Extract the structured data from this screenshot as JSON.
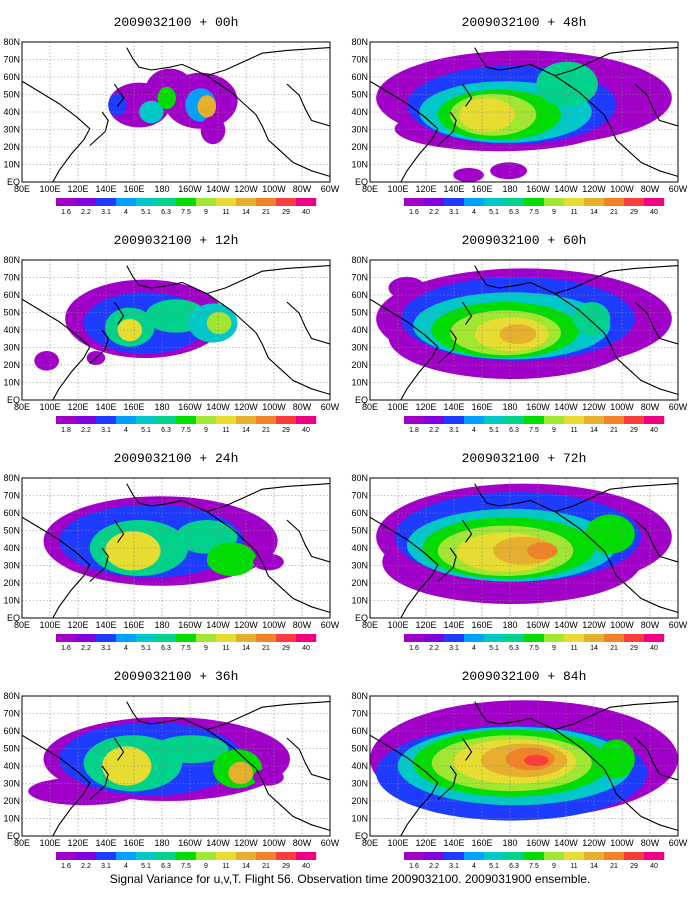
{
  "footer": "Signal Variance for u,v,T. Flight 56. Observation time 2009032100. 2009031900 ensemble.",
  "x_ticks": [
    "80E",
    "100E",
    "120E",
    "140E",
    "160E",
    "180",
    "160W",
    "140W",
    "120W",
    "100W",
    "80W",
    "60W"
  ],
  "y_ticks": [
    "EQ",
    "10N",
    "20N",
    "30N",
    "40N",
    "50N",
    "60N",
    "70N",
    "80N"
  ],
  "colorbar": {
    "labels": [
      "1.8",
      "2.2",
      "3.1",
      "4",
      "5.1",
      "6.3",
      "7.5",
      "9",
      "11",
      "14",
      "21",
      "29",
      "40"
    ],
    "colors": [
      "#a000c8",
      "#8200dc",
      "#1e3cff",
      "#00a0ff",
      "#00c8c8",
      "#00d28c",
      "#00dc00",
      "#a0e632",
      "#e6dc32",
      "#e6af2d",
      "#f08228",
      "#fa3c3c",
      "#f00082"
    ]
  },
  "panels": [
    {
      "title": "2009032100 + 00h",
      "cbar_labels": [
        "1.6",
        "2.2",
        "3.1",
        "4",
        "5.1",
        "6.3",
        "7.5",
        "9",
        "11",
        "14",
        "21",
        "29",
        "40"
      ]
    },
    {
      "title": "2009032100 + 48h",
      "cbar_labels": [
        "1.6",
        "2.2",
        "3.1",
        "4",
        "5.1",
        "6.3",
        "7.5",
        "9",
        "11",
        "14",
        "21",
        "29",
        "40"
      ]
    },
    {
      "title": "2009032100 + 12h",
      "cbar_labels": [
        "1.8",
        "2.2",
        "3.1",
        "4",
        "5.1",
        "6.3",
        "7.5",
        "9",
        "11",
        "14",
        "21",
        "29",
        "40"
      ]
    },
    {
      "title": "2009032100 + 60h",
      "cbar_labels": [
        "1.8",
        "2.2",
        "3.1",
        "4",
        "5.1",
        "6.3",
        "7.5",
        "9",
        "11",
        "14",
        "21",
        "29",
        "40"
      ]
    },
    {
      "title": "2009032100 + 24h",
      "cbar_labels": [
        "1.6",
        "2.2",
        "3.1",
        "4",
        "5.1",
        "6.3",
        "7.5",
        "9",
        "11",
        "14",
        "21",
        "29",
        "40"
      ]
    },
    {
      "title": "2009032100 + 72h",
      "cbar_labels": [
        "1.6",
        "2.2",
        "3.1",
        "4",
        "5.1",
        "6.3",
        "7.5",
        "9",
        "11",
        "14",
        "21",
        "29",
        "40"
      ]
    },
    {
      "title": "2009032100 + 36h",
      "cbar_labels": [
        "1.6",
        "2.2",
        "3.1",
        "4",
        "5.1",
        "6.3",
        "7.5",
        "9",
        "11",
        "14",
        "21",
        "29",
        "40"
      ]
    },
    {
      "title": "2009032100 + 84h",
      "cbar_labels": [
        "1.6",
        "2.2",
        "3.1",
        "4",
        "5.1",
        "6.3",
        "7.5",
        "9",
        "11",
        "14",
        "21",
        "29",
        "40"
      ]
    }
  ]
}
